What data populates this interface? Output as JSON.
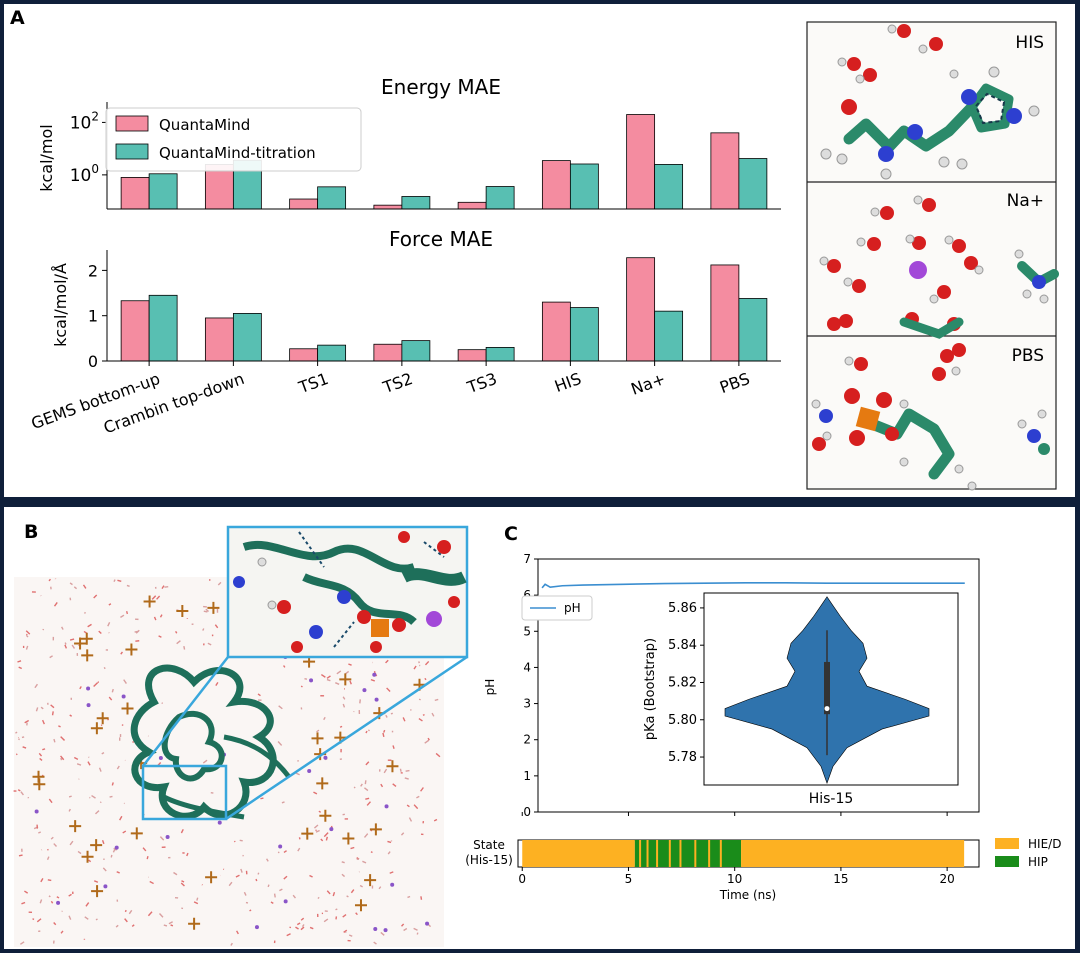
{
  "panel_labels": {
    "a": "A",
    "b": "B",
    "c": "C"
  },
  "colors": {
    "quantamind": "#f48ca0",
    "titration": "#58bfb2",
    "ph_line": "#3b8ed0",
    "violin": "#2f73ad",
    "hie": "#fdb122",
    "hip": "#1a8c1a",
    "frame": "#0f1f3a"
  },
  "chart_data": [
    {
      "id": "energy",
      "type": "bar",
      "title": "Energy MAE",
      "ylabel": "kcal/mol",
      "yscale": "log",
      "yticks": [
        {
          "value": 1,
          "label": "10^0"
        },
        {
          "value": 100,
          "label": "10^2"
        }
      ],
      "categories": [
        "GEMS bottom-up",
        "Crambin top-down",
        "TS1",
        "TS2",
        "TS3",
        "HIS",
        "Na+",
        "PBS"
      ],
      "series": [
        {
          "name": "QuantaMind",
          "values": [
            0.8,
            2.5,
            0.12,
            0.07,
            0.09,
            3.5,
            200,
            40
          ]
        },
        {
          "name": "QuantaMind-titration",
          "values": [
            1.1,
            3.6,
            0.35,
            0.15,
            0.36,
            2.6,
            2.5,
            4.2
          ]
        }
      ]
    },
    {
      "id": "force",
      "type": "bar",
      "title": "Force MAE",
      "ylabel": "kcal/mol/Å",
      "ylim": [
        0,
        2.45
      ],
      "yticks": [
        0,
        1,
        2
      ],
      "categories": [
        "GEMS bottom-up",
        "Crambin top-down",
        "TS1",
        "TS2",
        "TS3",
        "HIS",
        "Na+",
        "PBS"
      ],
      "series": [
        {
          "name": "QuantaMind",
          "values": [
            1.33,
            0.95,
            0.27,
            0.37,
            0.25,
            1.3,
            2.28,
            2.12
          ]
        },
        {
          "name": "QuantaMind-titration",
          "values": [
            1.45,
            1.05,
            0.35,
            0.45,
            0.3,
            1.18,
            1.1,
            1.38
          ]
        }
      ]
    },
    {
      "id": "ph",
      "type": "line",
      "ylabel": "pH",
      "ylim": [
        0,
        7
      ],
      "xlim": [
        -0.2,
        21.5
      ],
      "yticks": [
        0,
        1,
        2,
        3,
        4,
        5,
        6,
        7
      ],
      "legend": "pH",
      "points": [
        [
          0,
          6.2
        ],
        [
          0.15,
          6.3
        ],
        [
          0.4,
          6.22
        ],
        [
          1,
          6.26
        ],
        [
          2,
          6.28
        ],
        [
          4,
          6.3
        ],
        [
          6,
          6.32
        ],
        [
          8,
          6.33
        ],
        [
          10,
          6.34
        ],
        [
          12,
          6.34
        ],
        [
          14,
          6.33
        ],
        [
          16,
          6.33
        ],
        [
          18,
          6.33
        ],
        [
          20,
          6.33
        ],
        [
          20.8,
          6.33
        ]
      ]
    },
    {
      "id": "pka",
      "type": "violin",
      "ylabel": "pKa (Bootstrap)",
      "xlabel": "His-15",
      "ylim": [
        5.765,
        5.868
      ],
      "yticks": [
        5.78,
        5.8,
        5.82,
        5.84,
        5.86
      ],
      "min": 5.781,
      "q1": 5.803,
      "median": 5.806,
      "q3": 5.831,
      "max": 5.848
    },
    {
      "id": "state",
      "type": "state_timeline",
      "ylabel": "State\n(His-15)",
      "xlabel": "Time (ns)",
      "xticks": [
        0,
        5,
        10,
        15,
        20
      ],
      "xlim": [
        -0.2,
        21.5
      ],
      "legend": [
        "HIE/D",
        "HIP"
      ],
      "segments": [
        {
          "start": 0,
          "end": 5.3,
          "state": "HIE/D"
        },
        {
          "start": 5.3,
          "end": 10.3,
          "state": "HIP"
        },
        {
          "start": 10.3,
          "end": 20.8,
          "state": "HIE/D"
        }
      ],
      "hie_flickers": [
        5.5,
        5.85,
        6.3,
        6.9,
        7.4,
        8.1,
        8.75,
        9.3
      ]
    }
  ],
  "snapshots": [
    "HIS",
    "Na+",
    "PBS"
  ]
}
